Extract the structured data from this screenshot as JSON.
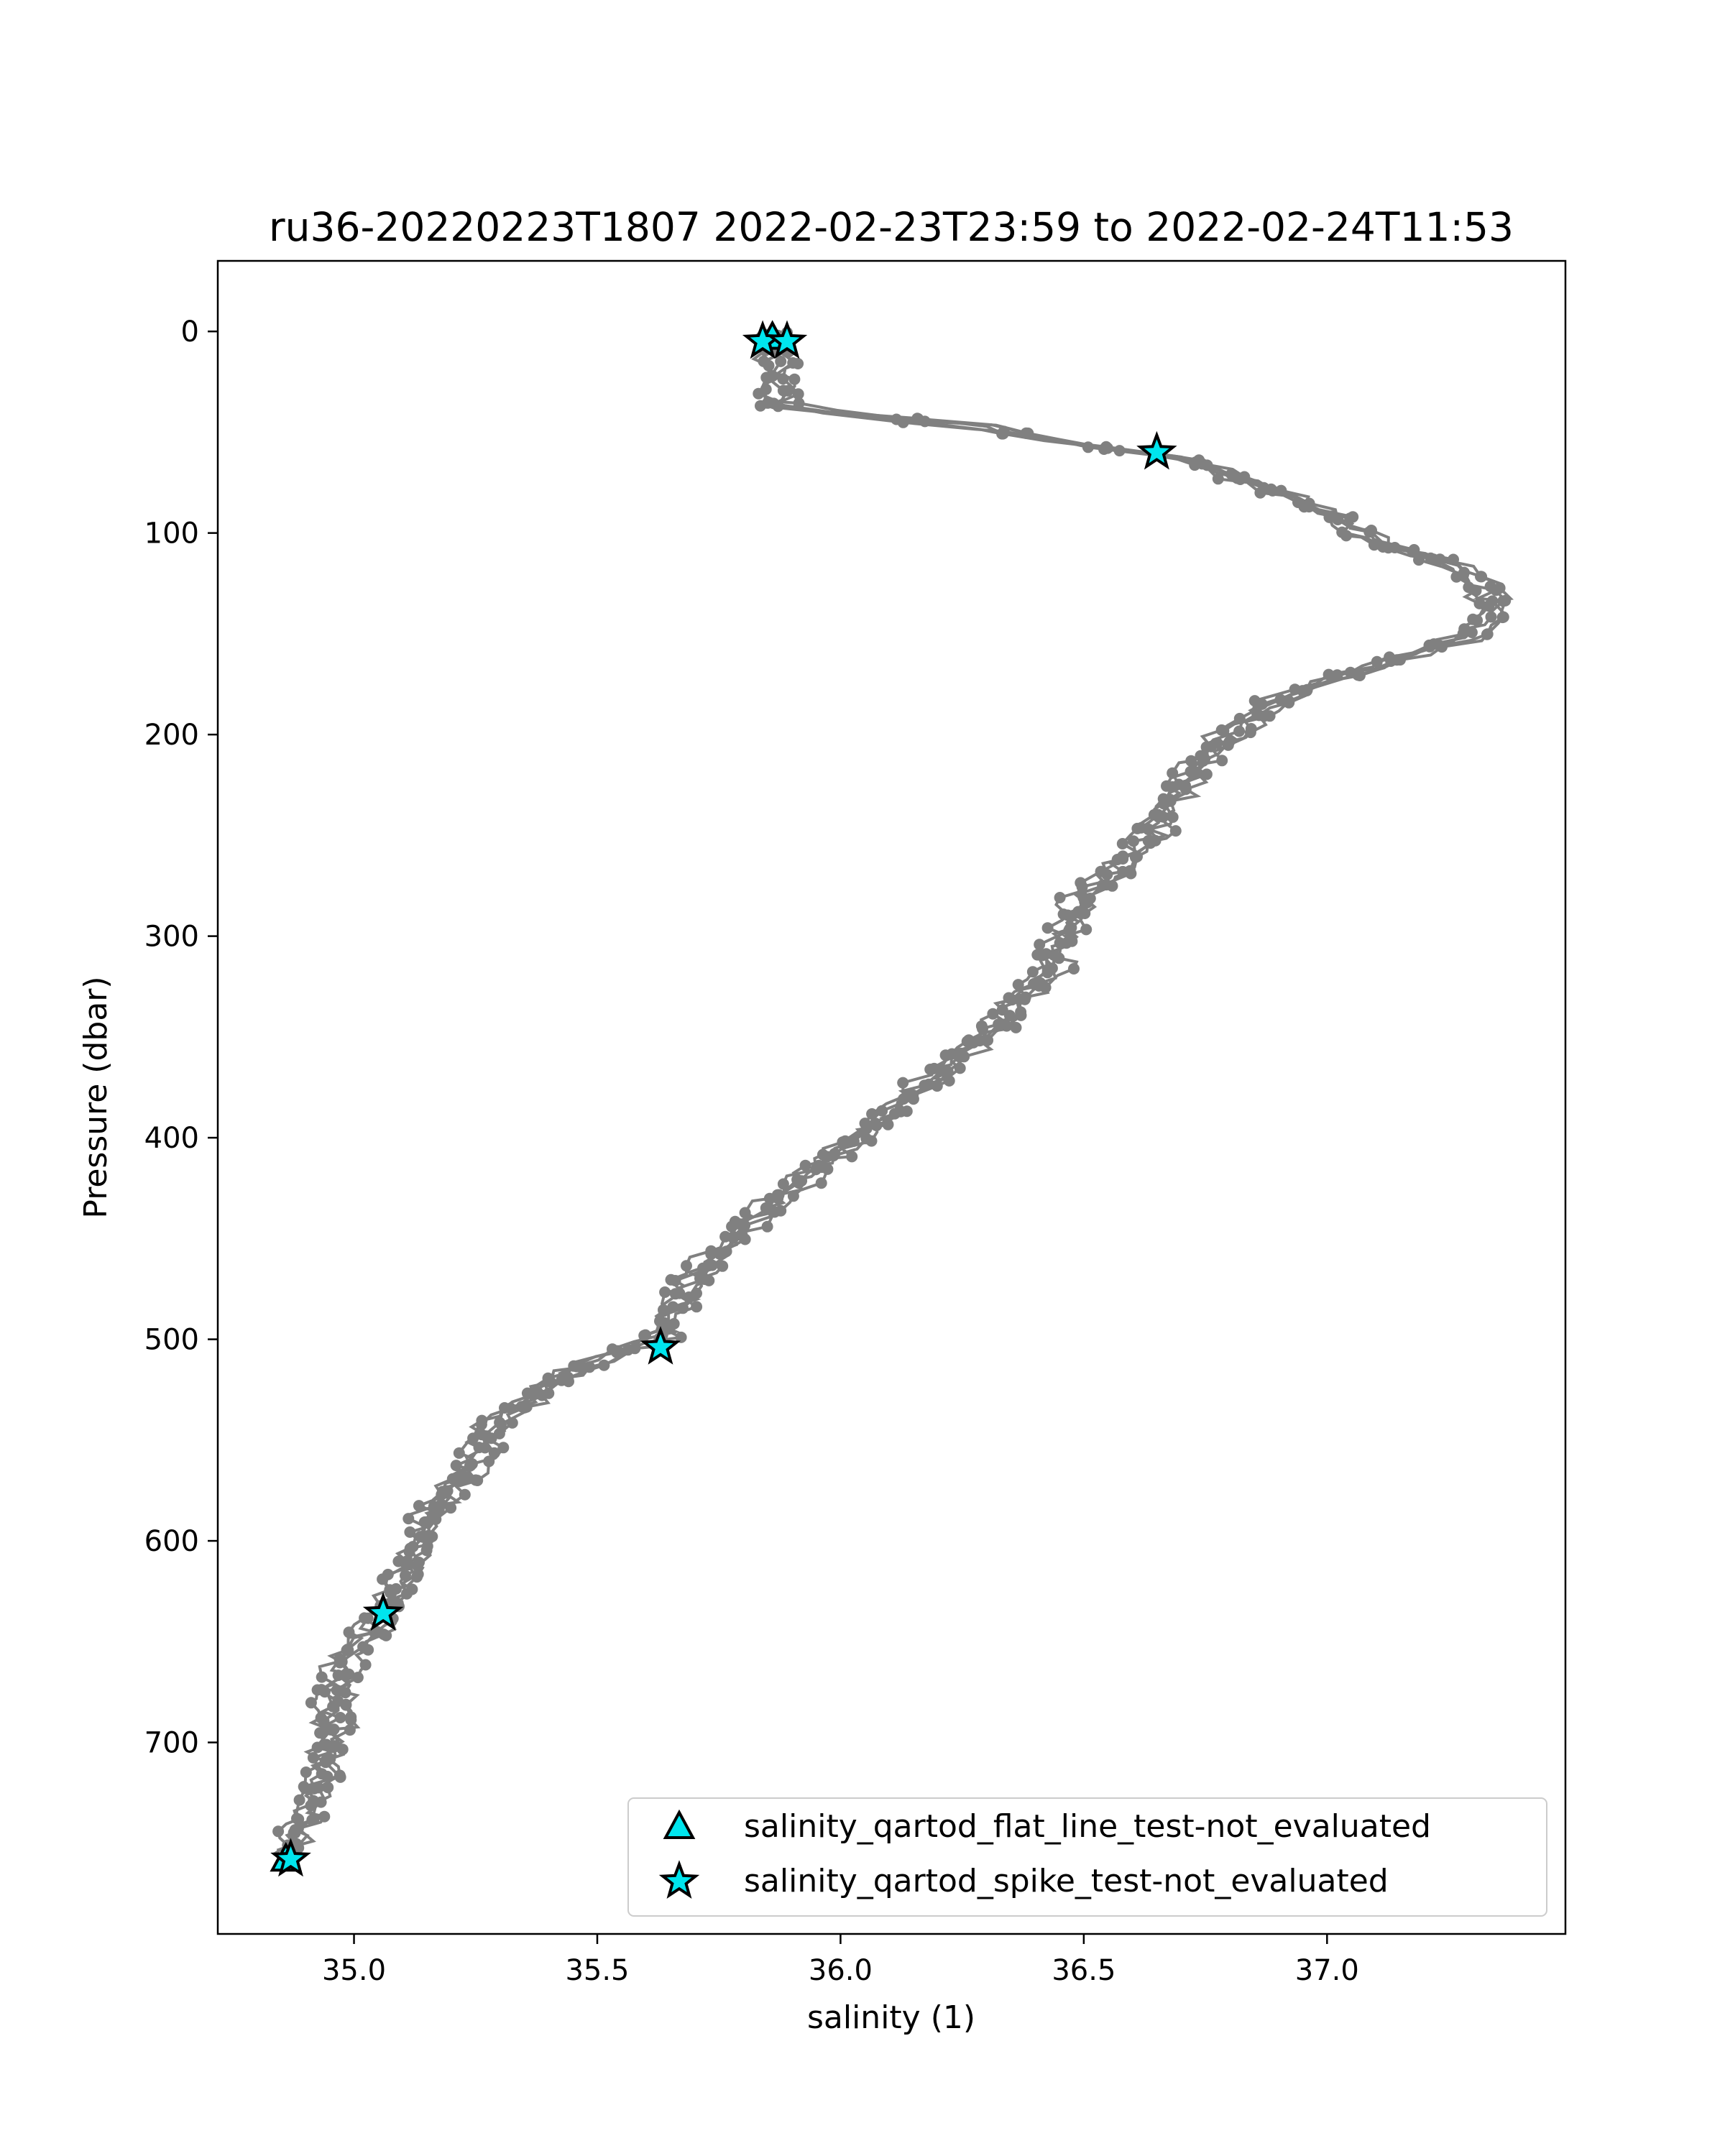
{
  "chart_data": {
    "type": "scatter",
    "title": "ru36-20220223T1807 2022-02-23T23:59 to 2022-02-24T11:53",
    "xlabel": "salinity (1)",
    "ylabel": "Pressure (dbar)",
    "xlim": [
      34.72,
      37.49
    ],
    "ylim": [
      795,
      -35
    ],
    "y_inverted": true,
    "grid": false,
    "legend_position": "lower-right",
    "xticks": [
      "35.0",
      "35.5",
      "36.0",
      "36.5",
      "37.0"
    ],
    "yticks": [
      "0",
      "100",
      "200",
      "300",
      "400",
      "500",
      "600",
      "700"
    ],
    "profile_color": "#808080",
    "flag_color": "#00e5ee",
    "profile": [
      [
        35.86,
        2
      ],
      [
        35.86,
        10
      ],
      [
        35.87,
        20
      ],
      [
        35.87,
        30
      ],
      [
        35.88,
        38
      ],
      [
        35.95,
        40
      ],
      [
        36.05,
        42
      ],
      [
        36.15,
        44
      ],
      [
        36.28,
        47
      ],
      [
        36.4,
        53
      ],
      [
        36.55,
        58
      ],
      [
        36.65,
        60
      ],
      [
        36.72,
        64
      ],
      [
        36.78,
        70
      ],
      [
        36.85,
        76
      ],
      [
        36.92,
        82
      ],
      [
        37.0,
        90
      ],
      [
        37.05,
        98
      ],
      [
        37.12,
        106
      ],
      [
        37.2,
        112
      ],
      [
        37.27,
        118
      ],
      [
        37.32,
        126
      ],
      [
        37.34,
        135
      ],
      [
        37.33,
        145
      ],
      [
        37.28,
        152
      ],
      [
        37.2,
        158
      ],
      [
        37.1,
        166
      ],
      [
        37.0,
        173
      ],
      [
        36.92,
        180
      ],
      [
        36.86,
        190
      ],
      [
        36.8,
        200
      ],
      [
        36.74,
        212
      ],
      [
        36.7,
        225
      ],
      [
        36.66,
        240
      ],
      [
        36.62,
        255
      ],
      [
        36.56,
        268
      ],
      [
        36.5,
        280
      ],
      [
        36.47,
        292
      ],
      [
        36.45,
        305
      ],
      [
        36.43,
        318
      ],
      [
        36.37,
        330
      ],
      [
        36.33,
        342
      ],
      [
        36.27,
        355
      ],
      [
        36.2,
        368
      ],
      [
        36.14,
        380
      ],
      [
        36.08,
        392
      ],
      [
        36.0,
        404
      ],
      [
        35.94,
        418
      ],
      [
        35.86,
        432
      ],
      [
        35.8,
        445
      ],
      [
        35.74,
        458
      ],
      [
        35.7,
        470
      ],
      [
        35.66,
        485
      ],
      [
        35.63,
        500
      ],
      [
        35.5,
        510
      ],
      [
        35.38,
        525
      ],
      [
        35.3,
        540
      ],
      [
        35.26,
        555
      ],
      [
        35.22,
        568
      ],
      [
        35.17,
        582
      ],
      [
        35.14,
        598
      ],
      [
        35.12,
        612
      ],
      [
        35.09,
        625
      ],
      [
        35.06,
        638
      ],
      [
        35.02,
        650
      ],
      [
        34.98,
        662
      ],
      [
        34.96,
        676
      ],
      [
        34.96,
        690
      ],
      [
        34.95,
        705
      ],
      [
        34.93,
        720
      ],
      [
        34.9,
        735
      ],
      [
        34.88,
        748
      ],
      [
        34.86,
        756
      ]
    ],
    "series": [
      {
        "name": "salinity_qartod_flat_line_test-not_evaluated",
        "marker": "triangle",
        "points": [
          [
            34.86,
            758
          ],
          [
            35.86,
            3
          ]
        ]
      },
      {
        "name": "salinity_qartod_spike_test-not_evaluated",
        "marker": "star",
        "points": [
          [
            35.84,
            5
          ],
          [
            35.89,
            5
          ],
          [
            36.65,
            60
          ],
          [
            35.63,
            504
          ],
          [
            35.06,
            636
          ],
          [
            34.87,
            758
          ]
        ]
      }
    ]
  }
}
